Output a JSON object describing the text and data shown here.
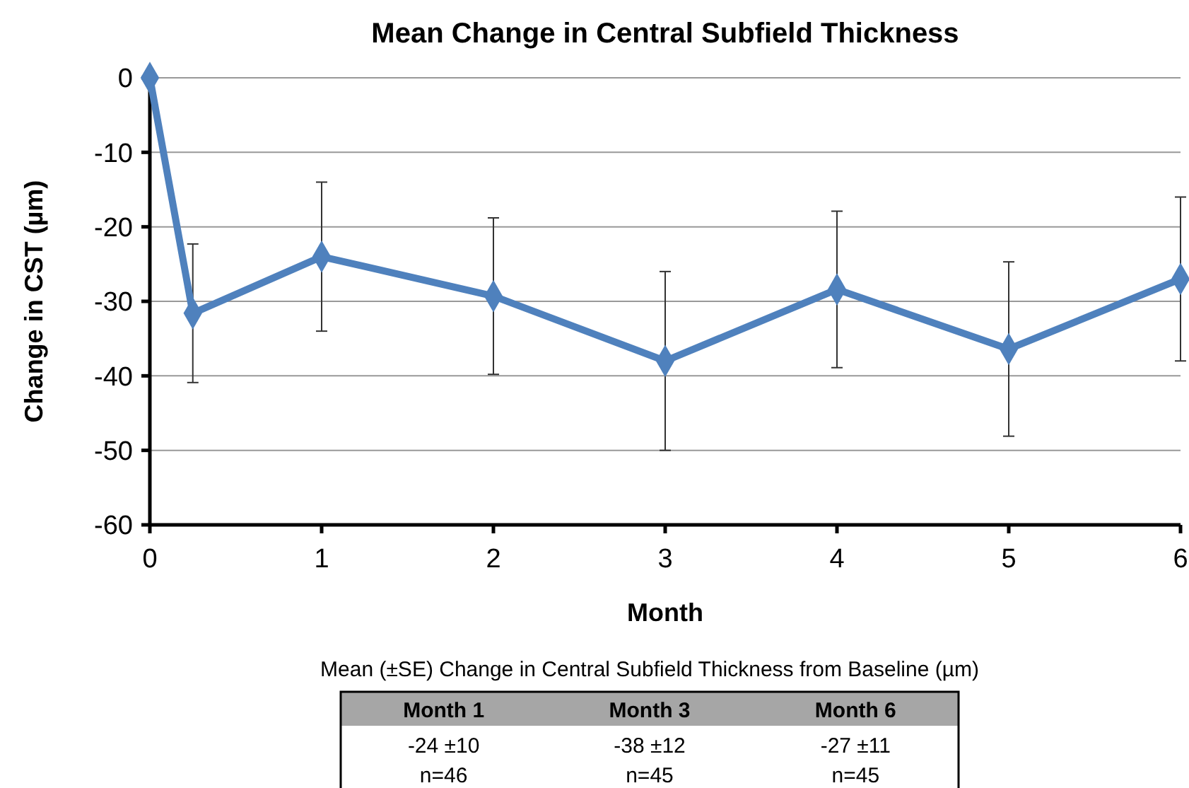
{
  "chart_data": {
    "type": "line",
    "title": "Mean Change in Central Subfield Thickness",
    "xlabel": "Month",
    "ylabel": "Change in CST (µm)",
    "x": [
      0,
      0.25,
      1,
      2,
      3,
      4,
      5,
      6
    ],
    "series": [
      {
        "color": "#4f81bd",
        "values": [
          0,
          -31.6,
          -24,
          -29.3,
          -38,
          -28.4,
          -36.4,
          -27
        ],
        "errors": [
          null,
          9.3,
          10,
          10.5,
          12,
          10.5,
          11.7,
          11
        ]
      }
    ],
    "xlim": [
      0,
      6
    ],
    "xticks": [
      0,
      1,
      2,
      3,
      4,
      5,
      6
    ],
    "ylim": [
      -60,
      0
    ],
    "yticks": [
      -60,
      -50,
      -40,
      -30,
      -20,
      -10,
      0
    ],
    "grid": "y",
    "marker": "diamond",
    "line_style": "solid",
    "annotations": [
      "Mean (±SE) Change in Central Subfield Thickness from Baseline (µm)",
      "Month 1",
      "-24 ±10",
      "n=46",
      "Month 3",
      "-38 ±12",
      "n=45",
      "Month 6",
      "-27 ±11",
      "n=45"
    ]
  }
}
